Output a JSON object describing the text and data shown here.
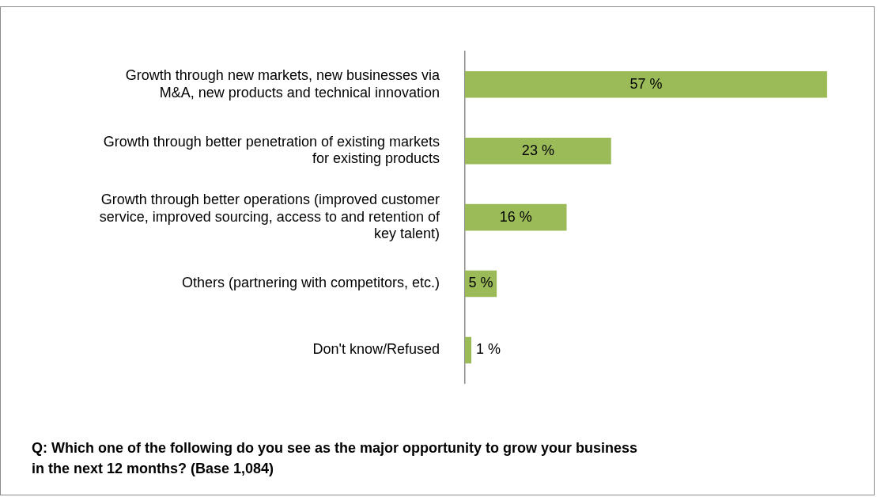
{
  "chart_data": {
    "type": "bar",
    "orientation": "horizontal",
    "categories": [
      "Growth through new markets, new businesses via M&A, new products and technical innovation",
      "Growth through better penetration of existing markets for existing products",
      "Growth through better operations (improved customer service, improved sourcing, access to and retention of key talent)",
      "Others (partnering with competitors, etc.)",
      "Don't know/Refused"
    ],
    "values": [
      57,
      23,
      16,
      5,
      1
    ],
    "value_labels": [
      "57 %",
      "23 %",
      "16 %",
      "5 %",
      "1 %"
    ],
    "color": "#9bbb59",
    "legend": false,
    "annotations": [
      "Q: Which one of the following do you see as the major opportunity to grow your business in the next 12 months? (Base 1,084)"
    ]
  }
}
